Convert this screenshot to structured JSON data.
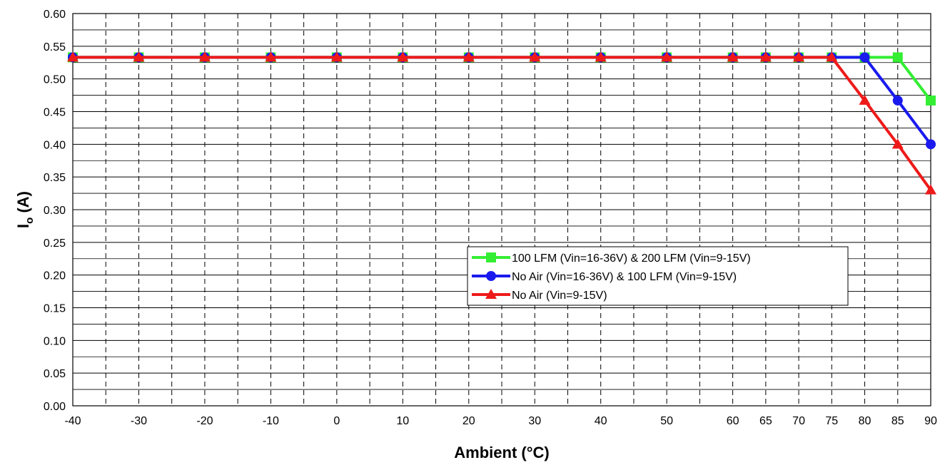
{
  "chart_data": {
    "type": "line",
    "xlabel": "Ambient (°C)",
    "ylabel": "I",
    "ylabel_sub": "o",
    "ylabel_suffix": " (A)",
    "xlim": [
      -40,
      90
    ],
    "ylim": [
      0,
      0.6
    ],
    "x_ticks": [
      -40,
      -30,
      -20,
      -10,
      0,
      10,
      20,
      30,
      40,
      50,
      60,
      65,
      70,
      75,
      80,
      85,
      90
    ],
    "x_tick_labels": [
      "-40",
      "-30",
      "-20",
      "-10",
      "0",
      "10",
      "20",
      "30",
      "40",
      "50",
      "60",
      "65",
      "70",
      "75",
      "80",
      "85",
      "90"
    ],
    "x_minor_gridlines": [
      -35,
      -25,
      -15,
      -5,
      5,
      15,
      25,
      35,
      45,
      55
    ],
    "y_ticks": [
      0,
      0.05,
      0.1,
      0.15,
      0.2,
      0.25,
      0.3,
      0.35,
      0.4,
      0.45,
      0.5,
      0.55,
      0.6
    ],
    "y_tick_labels": [
      "0.00",
      "0.05",
      "0.10",
      "0.15",
      "0.20",
      "0.25",
      "0.30",
      "0.35",
      "0.40",
      "0.45",
      "0.50",
      "0.55",
      "0.60"
    ],
    "grid": true,
    "legend_position": "center-right",
    "series": [
      {
        "name": "100 LFM (Vin=16-36V) & 200 LFM (Vin=9-15V)",
        "color": "#33ee33",
        "marker": "square",
        "x": [
          -40,
          -30,
          -20,
          -10,
          0,
          10,
          20,
          30,
          40,
          50,
          60,
          65,
          70,
          75,
          80,
          85,
          90
        ],
        "y": [
          0.533,
          0.533,
          0.533,
          0.533,
          0.533,
          0.533,
          0.533,
          0.533,
          0.533,
          0.533,
          0.533,
          0.533,
          0.533,
          0.533,
          0.533,
          0.533,
          0.467
        ]
      },
      {
        "name": "No Air (Vin=16-36V) & 100 LFM (Vin=9-15V)",
        "color": "#1a1aee",
        "marker": "circle",
        "x": [
          -40,
          -30,
          -20,
          -10,
          0,
          10,
          20,
          30,
          40,
          50,
          60,
          65,
          70,
          75,
          80,
          85,
          90
        ],
        "y": [
          0.533,
          0.533,
          0.533,
          0.533,
          0.533,
          0.533,
          0.533,
          0.533,
          0.533,
          0.533,
          0.533,
          0.533,
          0.533,
          0.533,
          0.533,
          0.467,
          0.4
        ]
      },
      {
        "name": "No Air (Vin=9-15V)",
        "color": "#ee1a1a",
        "marker": "triangle",
        "x": [
          -40,
          -30,
          -20,
          -10,
          0,
          10,
          20,
          30,
          40,
          50,
          60,
          65,
          70,
          75,
          80,
          85,
          90
        ],
        "y": [
          0.533,
          0.533,
          0.533,
          0.533,
          0.533,
          0.533,
          0.533,
          0.533,
          0.533,
          0.533,
          0.533,
          0.533,
          0.533,
          0.533,
          0.467,
          0.4,
          0.33
        ]
      }
    ]
  }
}
